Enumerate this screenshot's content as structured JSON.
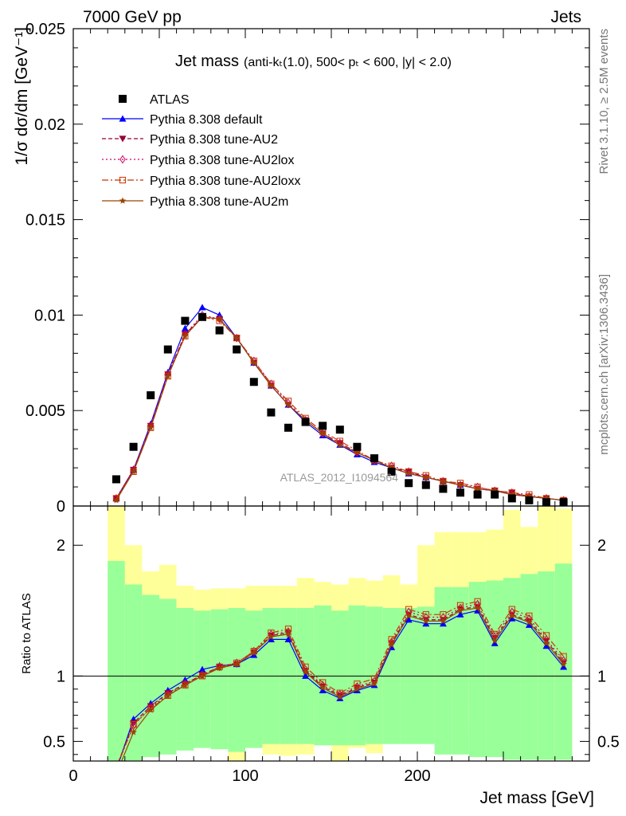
{
  "header": {
    "left": "7000 GeV pp",
    "right": "Jets"
  },
  "side_labels": {
    "top": "Rivet 3.1.10, ≥ 2.5M events",
    "bottom": "mcplots.cern.ch [arXiv:1306.3436]"
  },
  "chart_data": {
    "type": "scatter",
    "title_main": "Jet mass",
    "title_detail": "(anti-kₜ(1.0), 500< pₜ < 600, |y| < 2.0)",
    "xlabel": "Jet mass [GeV]",
    "ylabel": "1/σ dσ/dm [GeV⁻¹]",
    "ratio_ylabel": "Ratio to ATLAS",
    "watermark": "ATLAS_2012_I1094564",
    "xlim": [
      0,
      300
    ],
    "ylim": [
      0,
      0.025
    ],
    "ratio_ylim": [
      0.35,
      2.3
    ],
    "x_ticks": [
      "0",
      "100",
      "200"
    ],
    "y_ticks": [
      "0",
      "0.005",
      "0.01",
      "0.015",
      "0.02",
      "0.025"
    ],
    "ratio_ticks": [
      "0.5",
      "1",
      "2"
    ],
    "x": [
      25,
      35,
      45,
      55,
      65,
      75,
      85,
      95,
      105,
      115,
      125,
      135,
      145,
      155,
      165,
      175,
      185,
      195,
      205,
      215,
      225,
      235,
      245,
      255,
      265,
      275,
      285
    ],
    "data_series": {
      "name": "ATLAS",
      "values": [
        0.0014,
        0.0031,
        0.0058,
        0.0082,
        0.0097,
        0.0099,
        0.0092,
        0.0082,
        0.0065,
        0.0049,
        0.0041,
        0.0044,
        0.0042,
        0.004,
        0.0031,
        0.0025,
        0.0018,
        0.0012,
        0.0011,
        0.0009,
        0.0007,
        0.0006,
        0.0006,
        0.0004,
        0.0003,
        0.0002,
        0.0002
      ]
    },
    "series": [
      {
        "name": "Pythia 8.308 default",
        "color": "#0000ff",
        "dash": "",
        "marker": "triangle-up",
        "values": [
          0.0004,
          0.0019,
          0.0043,
          0.007,
          0.0093,
          0.0104,
          0.01,
          0.0088,
          0.0075,
          0.0063,
          0.0053,
          0.0044,
          0.0037,
          0.0032,
          0.0027,
          0.0023,
          0.002,
          0.0017,
          0.0015,
          0.0013,
          0.0011,
          0.0009,
          0.0008,
          0.0006,
          0.0005,
          0.0004,
          0.0003
        ],
        "ratio": [
          0.28,
          0.67,
          0.79,
          0.89,
          0.97,
          1.05,
          1.08,
          1.09,
          1.16,
          1.28,
          1.28,
          1.0,
          0.89,
          0.83,
          0.89,
          0.93,
          1.22,
          1.43,
          1.4,
          1.4,
          1.47,
          1.5,
          1.25,
          1.44,
          1.39,
          1.23,
          1.07
        ]
      },
      {
        "name": "Pythia 8.308 tune-AU2",
        "color": "#990033",
        "dash": "5,3",
        "marker": "triangle-down",
        "values": [
          0.0004,
          0.0019,
          0.0042,
          0.0069,
          0.009,
          0.0099,
          0.0098,
          0.0088,
          0.0075,
          0.0063,
          0.0053,
          0.0045,
          0.0038,
          0.0033,
          0.0028,
          0.0024,
          0.002,
          0.0018,
          0.0015,
          0.0013,
          0.0011,
          0.0009,
          0.0008,
          0.0007,
          0.0005,
          0.0004,
          0.0003
        ],
        "ratio": [
          0.3,
          0.64,
          0.77,
          0.87,
          0.94,
          1.01,
          1.07,
          1.09,
          1.18,
          1.31,
          1.33,
          1.04,
          0.92,
          0.85,
          0.91,
          0.95,
          1.25,
          1.47,
          1.43,
          1.43,
          1.51,
          1.53,
          1.29,
          1.47,
          1.42,
          1.27,
          1.1
        ]
      },
      {
        "name": "Pythia 8.308 tune-AU2lox",
        "color": "#cc0066",
        "dash": "2,3",
        "marker": "diamond",
        "values": [
          0.0004,
          0.0019,
          0.0042,
          0.0069,
          0.009,
          0.01,
          0.0098,
          0.0088,
          0.0076,
          0.0064,
          0.0054,
          0.0045,
          0.0038,
          0.0033,
          0.0028,
          0.0024,
          0.0021,
          0.0018,
          0.0015,
          0.0013,
          0.0011,
          0.001,
          0.0008,
          0.0007,
          0.0005,
          0.0004,
          0.0003
        ],
        "ratio": [
          0.3,
          0.62,
          0.76,
          0.86,
          0.94,
          1.01,
          1.07,
          1.1,
          1.19,
          1.32,
          1.34,
          1.05,
          0.93,
          0.86,
          0.92,
          0.96,
          1.26,
          1.49,
          1.45,
          1.45,
          1.52,
          1.55,
          1.3,
          1.49,
          1.44,
          1.28,
          1.12
        ]
      },
      {
        "name": "Pythia 8.308 tune-AU2loxx",
        "color": "#cc3300",
        "dash": "8,3,2,3",
        "marker": "square-open",
        "values": [
          0.0004,
          0.0018,
          0.0041,
          0.0068,
          0.0089,
          0.0099,
          0.0097,
          0.0088,
          0.0076,
          0.0064,
          0.0055,
          0.0046,
          0.0039,
          0.0034,
          0.0029,
          0.0024,
          0.0021,
          0.0018,
          0.0016,
          0.0013,
          0.0012,
          0.001,
          0.0008,
          0.0007,
          0.0006,
          0.0004,
          0.0003
        ],
        "ratio": [
          0.29,
          0.63,
          0.75,
          0.85,
          0.93,
          1.0,
          1.07,
          1.1,
          1.19,
          1.33,
          1.36,
          1.07,
          0.95,
          0.87,
          0.94,
          0.98,
          1.28,
          1.51,
          1.47,
          1.47,
          1.54,
          1.57,
          1.32,
          1.51,
          1.46,
          1.31,
          1.15
        ]
      },
      {
        "name": "Pythia 8.308 tune-AU2m",
        "color": "#994400",
        "dash": "",
        "marker": "star",
        "values": [
          0.0003,
          0.0018,
          0.0041,
          0.0068,
          0.0089,
          0.0099,
          0.0098,
          0.0088,
          0.0075,
          0.0063,
          0.0053,
          0.0045,
          0.0038,
          0.0032,
          0.0028,
          0.0024,
          0.002,
          0.0017,
          0.0015,
          0.0013,
          0.0011,
          0.0009,
          0.0008,
          0.0006,
          0.0005,
          0.0004,
          0.0003
        ],
        "ratio": [
          0.25,
          0.57,
          0.74,
          0.85,
          0.93,
          1.0,
          1.06,
          1.09,
          1.18,
          1.3,
          1.32,
          1.03,
          0.91,
          0.84,
          0.9,
          0.94,
          1.24,
          1.46,
          1.42,
          1.42,
          1.5,
          1.52,
          1.27,
          1.46,
          1.41,
          1.25,
          1.09
        ]
      }
    ],
    "uncertainty_bands": {
      "stat_color": "#99ff99",
      "total_color": "#ffff99",
      "stat_lo": [
        0.35,
        0.35,
        0.38,
        0.4,
        0.43,
        0.45,
        0.44,
        0.42,
        0.45,
        0.48,
        0.48,
        0.48,
        0.47,
        0.47,
        0.47,
        0.48,
        0.48,
        0.48,
        0.48,
        0.4,
        0.4,
        0.38,
        0.38,
        0.36,
        0.36,
        0.36,
        0.36
      ],
      "stat_hi": [
        1.88,
        1.7,
        1.62,
        1.59,
        1.52,
        1.5,
        1.51,
        1.52,
        1.5,
        1.52,
        1.52,
        1.52,
        1.54,
        1.5,
        1.54,
        1.53,
        1.52,
        1.52,
        1.53,
        1.68,
        1.68,
        1.72,
        1.73,
        1.75,
        1.78,
        1.8,
        1.86
      ],
      "total_lo": [
        0.35,
        0.35,
        0.48,
        0.5,
        0.75,
        0.78,
        0.6,
        0.35,
        0.72,
        0.4,
        0.39,
        0.4,
        0.5,
        0.35,
        0.45,
        0.41,
        0.82,
        0.82,
        0.5,
        0.8,
        0.82,
        0.55,
        0.5,
        0.38,
        0.4,
        0.36,
        0.36
      ],
      "total_hi": [
        2.3,
        2.0,
        1.8,
        1.85,
        1.69,
        1.66,
        1.67,
        1.67,
        1.69,
        1.69,
        1.69,
        1.75,
        1.72,
        1.7,
        1.75,
        1.73,
        1.77,
        1.7,
        2.0,
        2.1,
        2.1,
        2.1,
        2.12,
        2.27,
        2.14,
        2.3,
        2.28
      ]
    },
    "reference_line": 1,
    "legend_position": "top-left",
    "grid": false
  }
}
